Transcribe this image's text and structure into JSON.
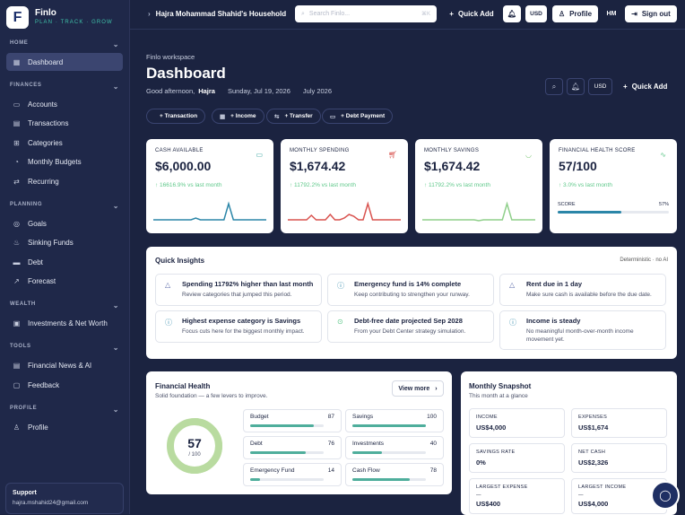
{
  "brand": {
    "name": "Finlo",
    "tagline": "PLAN · TRACK · GROW",
    "logo_letter": "F"
  },
  "sidebar": {
    "sections": [
      {
        "label": "HOME",
        "items": [
          {
            "label": "Dashboard",
            "icon": "grid-icon",
            "active": true
          }
        ]
      },
      {
        "label": "FINANCES",
        "items": [
          {
            "label": "Accounts",
            "icon": "wallet-icon"
          },
          {
            "label": "Transactions",
            "icon": "receipt-icon"
          },
          {
            "label": "Categories",
            "icon": "tags-icon"
          },
          {
            "label": "Monthly Budgets",
            "icon": "pie-icon"
          },
          {
            "label": "Recurring",
            "icon": "repeat-icon"
          }
        ]
      },
      {
        "label": "PLANNING",
        "items": [
          {
            "label": "Goals",
            "icon": "target-icon"
          },
          {
            "label": "Sinking Funds",
            "icon": "piggy-icon"
          },
          {
            "label": "Debt",
            "icon": "card-icon"
          },
          {
            "label": "Forecast",
            "icon": "trend-icon"
          }
        ]
      },
      {
        "label": "WEALTH",
        "items": [
          {
            "label": "Investments & Net Worth",
            "icon": "briefcase-icon"
          }
        ]
      },
      {
        "label": "TOOLS",
        "items": [
          {
            "label": "Financial News & AI",
            "icon": "news-icon"
          },
          {
            "label": "Feedback",
            "icon": "chat-icon"
          }
        ]
      },
      {
        "label": "PROFILE",
        "items": [
          {
            "label": "Profile",
            "icon": "user-icon"
          }
        ]
      }
    ],
    "support": {
      "title": "Support",
      "email": "hajra.mshahid24@gmail.com"
    }
  },
  "topbar": {
    "household": "Hajra Mohammad Shahid's Household",
    "search_placeholder": "Search Finlo...",
    "search_shortcut": "⌘K",
    "quick_add": "Quick Add",
    "currency": "USD",
    "profile": "Profile",
    "initials": "HM",
    "sign_out": "Sign out"
  },
  "page": {
    "workspace": "Finlo workspace",
    "title": "Dashboard",
    "greeting_prefix": "Good afternoon,",
    "greeting_name": "Hajra",
    "date": "Sunday, Jul 19, 2026",
    "month": "July 2026",
    "currency": "USD",
    "quick_add": "Quick Add",
    "actions": [
      "+ Transaction",
      "+ Income",
      "+ Transfer",
      "+ Debt Payment"
    ]
  },
  "kpis": [
    {
      "label": "CASH AVAILABLE",
      "value": "$6,000.00",
      "change": "↑ 16616.9% vs last month",
      "icon": "wallet-icon",
      "color": "#2b86a8",
      "spark": [
        0,
        0,
        0,
        0,
        0,
        0,
        0,
        0,
        0,
        0.1,
        0,
        0,
        0,
        0,
        0,
        0,
        0.9,
        0,
        0,
        0,
        0,
        0,
        0,
        0,
        0
      ]
    },
    {
      "label": "MONTHLY SPENDING",
      "value": "$1,674.42",
      "change": "↑ 11792.2% vs last month",
      "icon": "cart-icon",
      "color": "#d9534f",
      "spark": [
        0,
        0,
        0,
        0,
        0,
        0.25,
        0,
        0,
        0,
        0.3,
        0,
        0,
        0.1,
        0.3,
        0.2,
        0,
        0,
        0.9,
        0,
        0,
        0,
        0,
        0,
        0,
        0
      ]
    },
    {
      "label": "MONTHLY SAVINGS",
      "value": "$1,674.42",
      "change": "↑ 11792.2% vs last month",
      "icon": "piggy-icon",
      "color": "#8fcf8a",
      "spark": [
        0,
        0,
        0,
        0,
        0,
        0,
        0,
        0,
        0,
        0,
        0,
        0,
        -0.05,
        0,
        0,
        0,
        0,
        0,
        0.9,
        0,
        0,
        0,
        0,
        0,
        0
      ]
    },
    {
      "label": "FINANCIAL HEALTH SCORE",
      "value": "57/100",
      "change": "↑ 3.0% vs last month",
      "icon": "pulse-icon",
      "color": "#5fc88a",
      "score_label": "SCORE",
      "score_pct": "57%",
      "score": 57
    }
  ],
  "insights": {
    "title": "Quick Insights",
    "tag": "Deterministic · no AI",
    "items": [
      {
        "title": "Spending 11792% higher than last month",
        "desc": "Review categories that jumped this period.",
        "icon": "warning-icon"
      },
      {
        "title": "Emergency fund is 14% complete",
        "desc": "Keep contributing to strengthen your runway.",
        "icon": "info-icon"
      },
      {
        "title": "Rent due in 1 day",
        "desc": "Make sure cash is available before the due date.",
        "icon": "warning-icon"
      },
      {
        "title": "Highest expense category is Savings",
        "desc": "Focus cuts here for the biggest monthly impact.",
        "icon": "info-icon"
      },
      {
        "title": "Debt-free date projected Sep 2028",
        "desc": "From your Debt Center strategy simulation.",
        "icon": "check-icon"
      },
      {
        "title": "Income is steady",
        "desc": "No meaningful month-over-month income movement yet.",
        "icon": "info-icon"
      }
    ]
  },
  "health": {
    "title": "Financial Health",
    "subtitle": "Solid foundation — a few levers to improve.",
    "view_more": "View more",
    "score": "57",
    "out_of": "/ 100",
    "score_value": 57,
    "bars": [
      {
        "name": "Budget",
        "value": 87
      },
      {
        "name": "Savings",
        "value": 100
      },
      {
        "name": "Debt",
        "value": 76
      },
      {
        "name": "Investments",
        "value": 40
      },
      {
        "name": "Emergency Fund",
        "value": 14
      },
      {
        "name": "Cash Flow",
        "value": 78
      }
    ]
  },
  "snapshot": {
    "title": "Monthly Snapshot",
    "subtitle": "This month at a glance",
    "items": [
      {
        "label": "INCOME",
        "value": "US$4,000"
      },
      {
        "label": "EXPENSES",
        "value": "US$1,674"
      },
      {
        "label": "SAVINGS RATE",
        "value": "0%"
      },
      {
        "label": "NET CASH",
        "value": "US$2,326"
      },
      {
        "label": "LARGEST EXPENSE",
        "sub": "—",
        "value": "US$400"
      },
      {
        "label": "LARGEST INCOME",
        "sub": "—",
        "value": "US$4,000"
      }
    ]
  }
}
